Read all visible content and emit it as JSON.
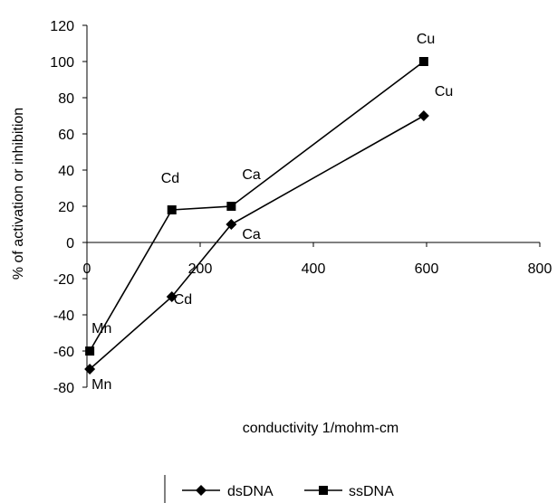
{
  "chart_data": {
    "type": "line",
    "title": "",
    "xlabel": "conductivity 1/mohm-cm",
    "ylabel": "% of activation or inhibition",
    "xlim": [
      0,
      800
    ],
    "ylim": [
      -80,
      120
    ],
    "xticks": [
      0,
      200,
      400,
      600,
      800
    ],
    "yticks": [
      -80,
      -60,
      -40,
      -20,
      0,
      20,
      40,
      60,
      80,
      100,
      120
    ],
    "grid": false,
    "legend_position": "bottom",
    "series": [
      {
        "name": "dsDNA",
        "marker": "diamond",
        "color": "#000000",
        "x": [
          5,
          150,
          255,
          595
        ],
        "y": [
          -70,
          -30,
          10,
          70
        ],
        "labels": [
          "Mn",
          "Cd",
          "Ca",
          "Cu"
        ]
      },
      {
        "name": "ssDNA",
        "marker": "square",
        "color": "#000000",
        "x": [
          5,
          150,
          255,
          595
        ],
        "y": [
          -60,
          18,
          20,
          100
        ],
        "labels": [
          "Mn",
          "Cd",
          "Ca",
          "Cu"
        ]
      }
    ]
  }
}
